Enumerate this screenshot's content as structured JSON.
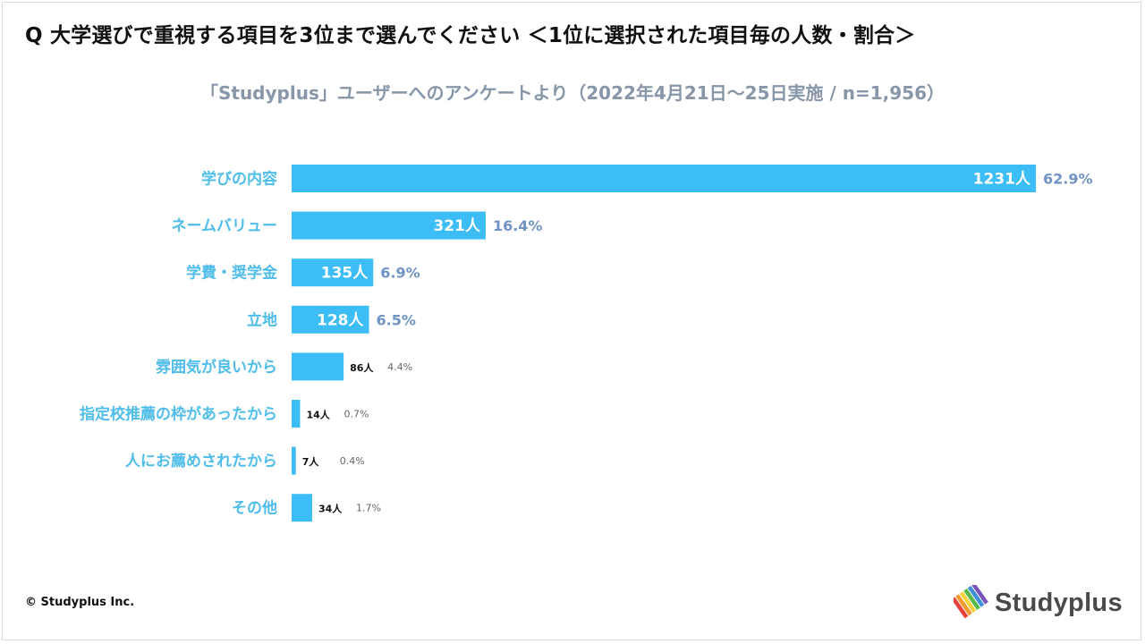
{
  "header": {
    "title": "Q 大学選びで重視する項目を3位まで選んでください ＜1位に選択された項目毎の人数・割合＞",
    "subtitle": "「Studyplus」ユーザーへのアンケートより（2022年4月21日〜25日実施 / n=1,956）"
  },
  "chart_data": {
    "type": "bar",
    "orientation": "horizontal",
    "title": "Q 大学選びで重視する項目を3位まで選んでください ＜1位に選択された項目毎の人数・割合＞",
    "subtitle": "「Studyplus」ユーザーへのアンケートより（2022年4月21日〜25日実施 / n=1,956）",
    "categories": [
      "学びの内容",
      "ネームバリュー",
      "学費・奨学金",
      "立地",
      "雰囲気が良いから",
      "指定校推薦の枠があったから",
      "人にお薦めされたから",
      "その他"
    ],
    "values": [
      1231,
      321,
      135,
      128,
      86,
      14,
      7,
      34
    ],
    "count_labels": [
      "1231人",
      "321人",
      "135人",
      "128人",
      "86人",
      "14人",
      "7人",
      "34人"
    ],
    "percent_labels": [
      "62.9%",
      "16.4%",
      "6.9%",
      "6.5%",
      "4.4%",
      "0.7%",
      "0.4%",
      "1.7%"
    ],
    "xlim": [
      0,
      1231
    ],
    "bar_color": "#3dbdf6",
    "label_color": "#4fbde9",
    "grid": false,
    "legend": "none"
  },
  "footer": {
    "copyright": "© Studyplus Inc.",
    "logo_text": "Studyplus",
    "logo_icon": "studyplus-pencils-icon"
  }
}
